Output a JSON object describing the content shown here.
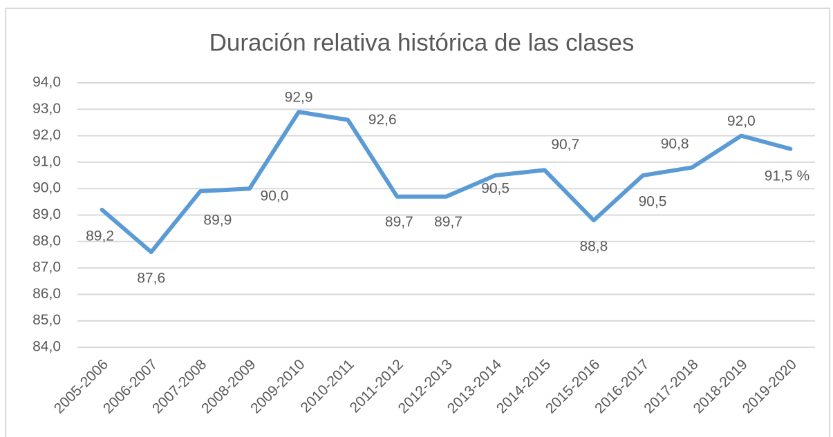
{
  "chart_data": {
    "type": "line",
    "title": "Duración relativa histórica de las clases",
    "categories": [
      "2005-2006",
      "2006-2007",
      "2007-2008",
      "2008-2009",
      "2009-2010",
      "2010-2011",
      "2011-2012",
      "2012-2013",
      "2013-2014",
      "2014-2015",
      "2015-2016",
      "2016-2017",
      "2017-2018",
      "2018-2019",
      "2019-2020"
    ],
    "series": [
      {
        "color": "#5b9bd5",
        "values": [
          89.2,
          87.6,
          89.9,
          90.0,
          92.9,
          92.6,
          89.7,
          89.7,
          90.5,
          90.7,
          88.8,
          90.5,
          90.8,
          92.0,
          91.5
        ],
        "value_labels": [
          "89,2",
          "87,6",
          "89,9",
          "90,0",
          "92,9",
          "92,6",
          "89,7",
          "89,7",
          "90,5",
          "90,7",
          "88,8",
          "90,5",
          "90,8",
          "92,0",
          "91,5 %"
        ]
      }
    ],
    "ylim": [
      84,
      94
    ],
    "yticks": [
      {
        "value": 84,
        "label": "84,0"
      },
      {
        "value": 85,
        "label": "85,0"
      },
      {
        "value": 86,
        "label": "86,0"
      },
      {
        "value": 87,
        "label": "87,0"
      },
      {
        "value": 88,
        "label": "88,0"
      },
      {
        "value": 89,
        "label": "89,0"
      },
      {
        "value": 90,
        "label": "90,0"
      },
      {
        "value": 91,
        "label": "91,0"
      },
      {
        "value": 92,
        "label": "92,0"
      },
      {
        "value": 93,
        "label": "93,0"
      },
      {
        "value": 94,
        "label": "94,0"
      }
    ],
    "grid": true
  }
}
